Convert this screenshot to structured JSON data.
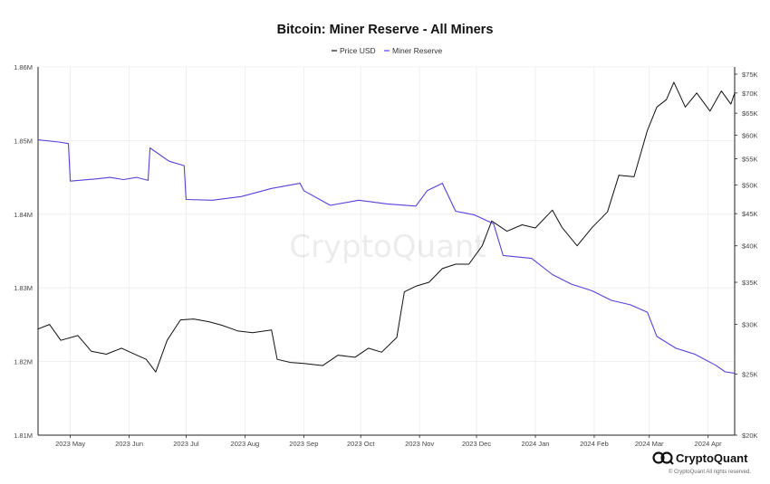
{
  "chart_data": {
    "type": "line",
    "title": "Bitcoin: Miner Reserve - All Miners",
    "x_ticks": [
      "2023 May",
      "2023 Jun",
      "2023 Jul",
      "2023 Aug",
      "2023 Sep",
      "2023 Oct",
      "2023 Nov",
      "2023 Dec",
      "2024 Jan",
      "2024 Feb",
      "2024 Mar",
      "2024 Apr"
    ],
    "x_range": [
      "2023-04-14",
      "2024-04-15"
    ],
    "y_left": {
      "ticks": [
        "1.81M",
        "1.82M",
        "1.83M",
        "1.84M",
        "1.85M",
        "1.86M"
      ],
      "range": [
        1810000,
        1860000
      ]
    },
    "y_right": {
      "scale": "log",
      "ticks": [
        "$20K",
        "$25K",
        "$30K",
        "$35K",
        "$40K",
        "$45K",
        "$50K",
        "$55K",
        "$60K",
        "$65K",
        "$70K",
        "$75K"
      ],
      "range": [
        20000,
        77000
      ]
    },
    "grid": true,
    "legend_position": "top",
    "series": [
      {
        "name": "Price USD",
        "axis": "right",
        "color": "#111111",
        "x": [
          "2023-04-14",
          "2023-04-20",
          "2023-04-26",
          "2023-05-05",
          "2023-05-12",
          "2023-05-20",
          "2023-05-28",
          "2023-06-05",
          "2023-06-10",
          "2023-06-15",
          "2023-06-21",
          "2023-06-28",
          "2023-07-05",
          "2023-07-13",
          "2023-07-20",
          "2023-07-28",
          "2023-08-05",
          "2023-08-15",
          "2023-08-18",
          "2023-08-25",
          "2023-09-01",
          "2023-09-11",
          "2023-09-19",
          "2023-09-28",
          "2023-10-05",
          "2023-10-12",
          "2023-10-20",
          "2023-10-24",
          "2023-10-30",
          "2023-11-06",
          "2023-11-13",
          "2023-11-20",
          "2023-11-27",
          "2023-12-04",
          "2023-12-09",
          "2023-12-17",
          "2023-12-25",
          "2024-01-01",
          "2024-01-10",
          "2024-01-15",
          "2024-01-23",
          "2024-01-31",
          "2024-02-08",
          "2024-02-14",
          "2024-02-22",
          "2024-02-29",
          "2024-03-05",
          "2024-03-10",
          "2024-03-14",
          "2024-03-20",
          "2024-03-26",
          "2024-04-02",
          "2024-04-08",
          "2024-04-13",
          "2024-04-15"
        ],
        "y": [
          29500,
          30000,
          28300,
          28800,
          27200,
          26900,
          27500,
          26800,
          26400,
          25200,
          28300,
          30500,
          30600,
          30300,
          29900,
          29300,
          29100,
          29400,
          26400,
          26100,
          26000,
          25800,
          26800,
          26600,
          27500,
          27100,
          28600,
          33800,
          34500,
          35000,
          36800,
          37400,
          37400,
          40000,
          43800,
          42200,
          43200,
          42700,
          45600,
          42800,
          40000,
          42800,
          45300,
          51800,
          51500,
          61000,
          66500,
          68300,
          72800,
          66500,
          70000,
          65500,
          70500,
          67200,
          70000
        ]
      },
      {
        "name": "Miner Reserve",
        "axis": "left",
        "color": "#5b3fd9",
        "x": [
          "2023-04-14",
          "2023-04-25",
          "2023-04-30",
          "2023-05-01",
          "2023-05-15",
          "2023-05-22",
          "2023-05-29",
          "2023-06-05",
          "2023-06-11",
          "2023-06-12",
          "2023-06-22",
          "2023-06-30",
          "2023-07-01",
          "2023-07-15",
          "2023-07-30",
          "2023-08-15",
          "2023-08-30",
          "2023-09-01",
          "2023-09-15",
          "2023-09-30",
          "2023-10-15",
          "2023-10-30",
          "2023-11-05",
          "2023-11-13",
          "2023-11-20",
          "2023-11-30",
          "2023-12-10",
          "2023-12-15",
          "2023-12-30",
          "2024-01-10",
          "2024-01-20",
          "2024-01-31",
          "2024-02-10",
          "2024-02-20",
          "2024-02-29",
          "2024-03-05",
          "2024-03-15",
          "2024-03-25",
          "2024-04-05",
          "2024-04-10",
          "2024-04-15"
        ],
        "y": [
          1850100,
          1849800,
          1849600,
          1844500,
          1844800,
          1845000,
          1844700,
          1845000,
          1844600,
          1849000,
          1847200,
          1846600,
          1842000,
          1841900,
          1842400,
          1843500,
          1844200,
          1843200,
          1841200,
          1841900,
          1841400,
          1841100,
          1843200,
          1844200,
          1840400,
          1839900,
          1838700,
          1834400,
          1834000,
          1831800,
          1830500,
          1829600,
          1828300,
          1827700,
          1826700,
          1823400,
          1821800,
          1821000,
          1819500,
          1818600,
          1818400
        ]
      }
    ]
  },
  "legend": {
    "price_label": "Price USD",
    "reserve_label": "Miner Reserve"
  },
  "watermark": "CryptoQuant",
  "brand": {
    "name": "CryptoQuant",
    "copyright": "© CryptoQuant All rights reserved."
  },
  "colors": {
    "price": "#111111",
    "reserve": "#5b3fd9",
    "grid": "#ececec",
    "axis": "#222222"
  }
}
